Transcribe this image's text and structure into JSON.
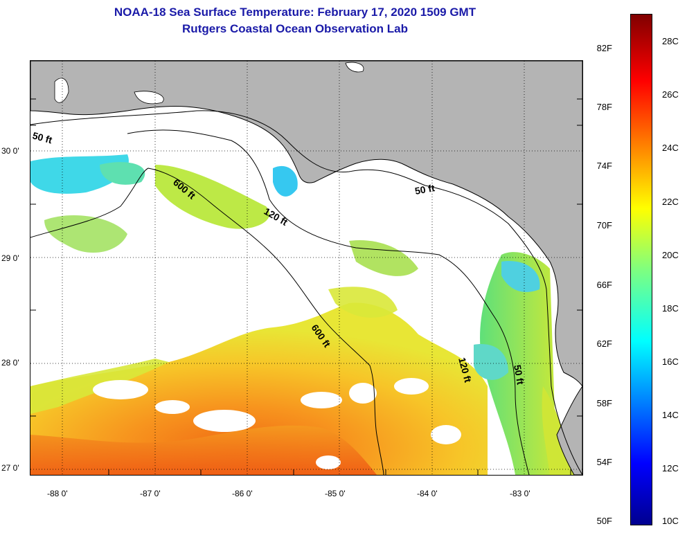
{
  "title": {
    "line1": "NOAA-18 Sea Surface Temperature:  February 17, 2020 1509 GMT",
    "line2": "Rutgers Coastal Ocean Observation Lab"
  },
  "axes": {
    "lon_labels": [
      "-88 0'",
      "-87 0'",
      "-86 0'",
      "-85 0'",
      "-84 0'",
      "-83 0'"
    ],
    "lat_labels": [
      "30 0'",
      "29 0'",
      "28 0'",
      "27 0'"
    ]
  },
  "contours": {
    "c50_west": "50 ft",
    "c50_east": "50 ft",
    "c50_sw": "50 ft",
    "c120": "120 ft",
    "c120_se": "120 ft",
    "c600_n": "600 ft",
    "c600_s": "600 ft"
  },
  "colorbar": {
    "fahrenheit": [
      "82F",
      "78F",
      "74F",
      "70F",
      "66F",
      "62F",
      "58F",
      "54F",
      "50F"
    ],
    "celsius": [
      "28C",
      "26C",
      "24C",
      "22C",
      "20C",
      "18C",
      "16C",
      "14C",
      "12C",
      "10C"
    ]
  },
  "colors": {
    "land": "#b4b4b4",
    "no_data": "#ffffff",
    "title": "#1a1aa8"
  }
}
